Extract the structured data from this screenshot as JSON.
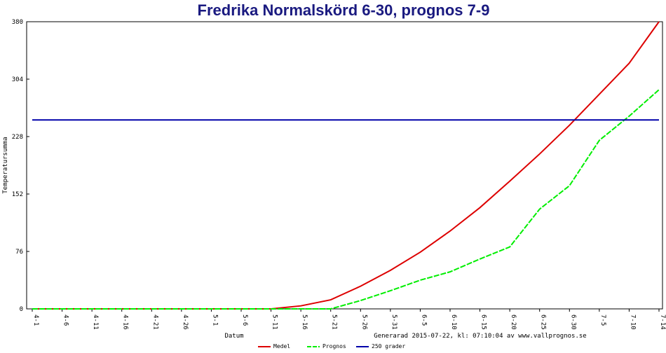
{
  "chart_data": {
    "type": "line",
    "title": "Fredrika Normalskörd 6-30, prognos 7-9",
    "x_label": "Datum",
    "y_label": "Temperatursumma",
    "annotation": "Generarad 2015-07-22, kl: 07:10:04 av www.vallprognos.se",
    "categories": [
      "4-1",
      "4-6",
      "4-11",
      "4-16",
      "4-21",
      "4-26",
      "5-1",
      "5-6",
      "5-11",
      "5-16",
      "5-21",
      "5-26",
      "5-31",
      "6-5",
      "6-10",
      "6-15",
      "6-20",
      "6-25",
      "6-30",
      "7-5",
      "7-10",
      "7-14"
    ],
    "series": [
      {
        "name": "Medel",
        "color": "#dd0000",
        "values": [
          0,
          0,
          0,
          0,
          0,
          0,
          0,
          0,
          0,
          4,
          12,
          30,
          51,
          75,
          103,
          134,
          169,
          205,
          243,
          284,
          325,
          380
        ]
      },
      {
        "name": "Prognos",
        "color": "#00ee00",
        "dashed": true,
        "values": [
          0,
          0,
          0,
          0,
          0,
          0,
          0,
          0,
          0,
          0,
          0,
          11,
          24,
          38,
          49,
          66,
          82,
          132,
          163,
          223,
          255,
          290
        ]
      },
      {
        "name": "250 grader",
        "color": "#0000aa",
        "values": [
          250,
          250,
          250,
          250,
          250,
          250,
          250,
          250,
          250,
          250,
          250,
          250,
          250,
          250,
          250,
          250,
          250,
          250,
          250,
          250,
          250,
          250
        ]
      }
    ],
    "ylim": [
      0,
      380
    ],
    "yticks": [
      0,
      76,
      152,
      228,
      304,
      380
    ],
    "grid": false
  }
}
